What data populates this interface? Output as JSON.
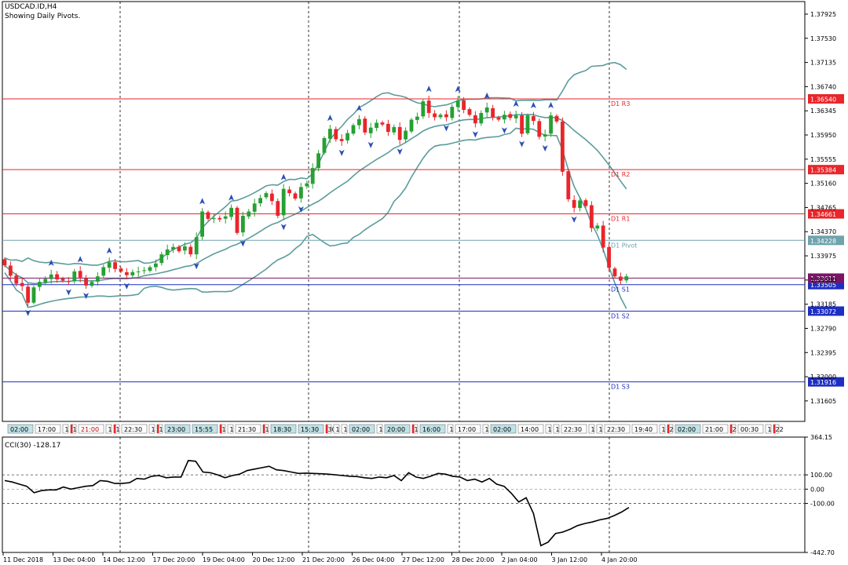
{
  "header": {
    "symbol": "USDCAD.ID,H4",
    "subtitle": "Showing Daily Pivots."
  },
  "colors": {
    "bull": "#26a032",
    "bear": "#e8262b",
    "band": "#5c9c9c",
    "resistance": "#e8262b",
    "pivot": "#6fa3ad",
    "support": "#1e2ec2",
    "current": "#7a1468",
    "arrow": "#2c4fb5",
    "grid": "#000000"
  },
  "chart_data": [
    {
      "type": "candlestick",
      "title": "USDCAD.ID,H4",
      "ylim": [
        1.3127,
        1.3813
      ],
      "y_ticks": [
        "1.37925",
        "1.37530",
        "1.37135",
        "1.36740",
        "1.36345",
        "1.35950",
        "1.35555",
        "1.35160",
        "1.34765",
        "1.34370",
        "1.33975",
        "1.33580",
        "1.33185",
        "1.32790",
        "1.32395",
        "1.32000",
        "1.31605"
      ],
      "pivots": [
        {
          "name": "D1 R3",
          "value": 1.3654,
          "label": "1.36540",
          "kind": "resistance"
        },
        {
          "name": "D1 R2",
          "value": 1.35384,
          "label": "1.35384",
          "kind": "resistance"
        },
        {
          "name": "D1 R1",
          "value": 1.34661,
          "label": "1.34661",
          "kind": "resistance"
        },
        {
          "name": "D1 Pivot",
          "value": 1.34228,
          "label": "1.34228",
          "kind": "pivot"
        },
        {
          "name": "D1 S1",
          "value": 1.33505,
          "label": "1.33505",
          "kind": "support"
        },
        {
          "name": "D1 S2",
          "value": 1.33072,
          "label": "1.33072",
          "kind": "support"
        },
        {
          "name": "D1 S3",
          "value": 1.31916,
          "label": "1.31916",
          "kind": "support"
        }
      ],
      "current_price": {
        "value": 1.33611,
        "label": "1.33611"
      },
      "closes": [
        1.3382,
        1.3365,
        1.3352,
        1.3348,
        1.3321,
        1.3346,
        1.3355,
        1.336,
        1.3367,
        1.3359,
        1.3357,
        1.3356,
        1.3372,
        1.3362,
        1.3349,
        1.3355,
        1.3364,
        1.3379,
        1.3387,
        1.3376,
        1.3372,
        1.3366,
        1.3371,
        1.3372,
        1.3374,
        1.3379,
        1.3385,
        1.34,
        1.3408,
        1.3412,
        1.3405,
        1.3413,
        1.34,
        1.3428,
        1.347,
        1.3458,
        1.3459,
        1.3457,
        1.3462,
        1.3476,
        1.3435,
        1.3463,
        1.347,
        1.3483,
        1.3492,
        1.35,
        1.3487,
        1.3463,
        1.3507,
        1.35,
        1.3491,
        1.351,
        1.3516,
        1.3541,
        1.3565,
        1.359,
        1.3605,
        1.3588,
        1.3585,
        1.3598,
        1.3611,
        1.3621,
        1.3599,
        1.3607,
        1.3615,
        1.3612,
        1.36,
        1.3608,
        1.3587,
        1.3602,
        1.362,
        1.3625,
        1.365,
        1.3631,
        1.3624,
        1.3628,
        1.3624,
        1.3641,
        1.3651,
        1.3636,
        1.3628,
        1.3614,
        1.3631,
        1.364,
        1.3624,
        1.362,
        1.3628,
        1.3623,
        1.3627,
        1.3597,
        1.3627,
        1.3618,
        1.3592,
        1.3596,
        1.3627,
        1.3617,
        1.3535,
        1.349,
        1.3476,
        1.3488,
        1.3479,
        1.3443,
        1.3447,
        1.3411,
        1.3378,
        1.3364,
        1.3357,
        1.3364
      ]
    },
    {
      "type": "line",
      "title": "CCI(30) -128.17",
      "ylim": [
        -442.7,
        364.15
      ],
      "y_ticks": [
        "364.15",
        "100.00",
        "0.00",
        "-100.00",
        "-442.70"
      ],
      "levels": [
        100,
        0,
        -100
      ],
      "values": [
        60,
        50,
        35,
        20,
        -25,
        -10,
        -5,
        -5,
        15,
        0,
        10,
        20,
        25,
        60,
        55,
        40,
        40,
        45,
        75,
        70,
        90,
        95,
        80,
        85,
        85,
        200,
        195,
        120,
        115,
        100,
        80,
        95,
        105,
        130,
        140,
        150,
        160,
        135,
        130,
        120,
        110,
        112,
        110,
        108,
        105,
        100,
        95,
        90,
        88,
        80,
        75,
        85,
        80,
        95,
        60,
        115,
        85,
        75,
        90,
        110,
        105,
        90,
        85,
        60,
        70,
        50,
        75,
        35,
        20,
        -30,
        -90,
        -60,
        -170,
        -395,
        -370,
        -310,
        -300,
        -280,
        -255,
        -240,
        -230,
        -215,
        -205,
        -185,
        -160,
        -128
      ]
    }
  ],
  "x_axis": [
    "11 Dec 2018",
    "13 Dec 04:00",
    "14 Dec 12:00",
    "17 Dec 20:00",
    "19 Dec 04:00",
    "20 Dec 12:00",
    "21 Dec 20:00",
    "26 Dec 04:00",
    "27 Dec 12:00",
    "28 Dec 20:00",
    "2 Jan 04:00",
    "3 Jan 12:00",
    "4 Jan 20:00"
  ],
  "session_bar": [
    "02:00",
    "17:00",
    "1",
    "1",
    "21:00",
    "1",
    "1",
    "22:30",
    "1",
    "1",
    "23:00",
    "15:55",
    "1",
    "1",
    "21:30",
    "1",
    "18:30",
    "15:30",
    "30",
    "1",
    "1",
    "02:00",
    "1",
    "20:00",
    "1",
    "16:00",
    "1",
    "17:00",
    "1",
    "02:00",
    "14:00",
    "1",
    "1",
    "22:30",
    "1",
    "1",
    "22:30",
    "19:40",
    "1",
    "2",
    "02:00",
    "21:00",
    "2",
    "00:30",
    "1",
    "22"
  ]
}
